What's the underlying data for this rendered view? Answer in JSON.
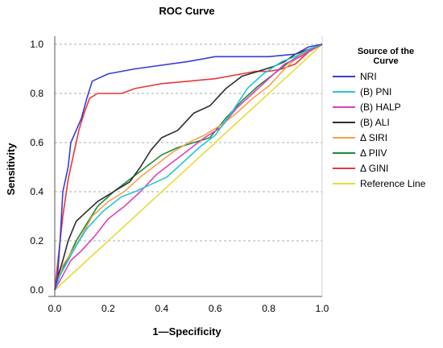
{
  "chart_data": {
    "type": "line",
    "title": "ROC Curve",
    "xlabel": "1—Specificity",
    "ylabel": "Sensitivity",
    "xlim": [
      0.0,
      1.0
    ],
    "ylim": [
      0.0,
      1.0
    ],
    "xticks": [
      "0.0",
      "0.2",
      "0.4",
      "0.6",
      "0.8",
      "1.0"
    ],
    "yticks": [
      "0.0",
      "0.2",
      "0.4",
      "0.6",
      "0.8",
      "1.0"
    ],
    "grid": "horizontal dotted",
    "legend_title_lines": [
      "Source of the",
      "Curve"
    ],
    "legend_position": "right",
    "series": [
      {
        "name": "NRI",
        "color": "#3b3bd6",
        "x": [
          0.0,
          0.01,
          0.02,
          0.03,
          0.05,
          0.06,
          0.08,
          0.1,
          0.12,
          0.14,
          0.16,
          0.2,
          0.3,
          0.5,
          0.6,
          0.7,
          0.8,
          0.9,
          0.95,
          1.0
        ],
        "y": [
          0.0,
          0.05,
          0.2,
          0.4,
          0.5,
          0.6,
          0.65,
          0.7,
          0.78,
          0.85,
          0.86,
          0.88,
          0.9,
          0.93,
          0.95,
          0.95,
          0.95,
          0.96,
          0.99,
          1.0
        ]
      },
      {
        "name": "(B) PNI",
        "color": "#22c6d6",
        "x": [
          0.0,
          0.02,
          0.05,
          0.08,
          0.12,
          0.18,
          0.25,
          0.3,
          0.36,
          0.42,
          0.48,
          0.54,
          0.6,
          0.66,
          0.72,
          0.78,
          0.85,
          0.9,
          0.95,
          1.0
        ],
        "y": [
          0.0,
          0.06,
          0.12,
          0.18,
          0.25,
          0.32,
          0.38,
          0.4,
          0.43,
          0.46,
          0.52,
          0.58,
          0.63,
          0.72,
          0.82,
          0.88,
          0.93,
          0.95,
          0.98,
          1.0
        ]
      },
      {
        "name": "(B) HALP",
        "color": "#e040b8",
        "x": [
          0.0,
          0.03,
          0.06,
          0.1,
          0.15,
          0.2,
          0.26,
          0.32,
          0.38,
          0.44,
          0.5,
          0.56,
          0.62,
          0.68,
          0.74,
          0.8,
          0.86,
          0.92,
          0.96,
          1.0
        ],
        "y": [
          0.0,
          0.06,
          0.12,
          0.16,
          0.22,
          0.29,
          0.34,
          0.4,
          0.47,
          0.52,
          0.57,
          0.62,
          0.66,
          0.74,
          0.8,
          0.86,
          0.92,
          0.95,
          0.98,
          1.0
        ]
      },
      {
        "name": "(B) ALI",
        "color": "#2d2d2d",
        "x": [
          0.0,
          0.01,
          0.03,
          0.05,
          0.08,
          0.12,
          0.16,
          0.22,
          0.28,
          0.32,
          0.36,
          0.4,
          0.46,
          0.52,
          0.58,
          0.64,
          0.7,
          0.76,
          0.82,
          0.86,
          0.9,
          0.95,
          1.0
        ],
        "y": [
          0.0,
          0.05,
          0.12,
          0.2,
          0.28,
          0.32,
          0.36,
          0.4,
          0.44,
          0.5,
          0.57,
          0.62,
          0.65,
          0.72,
          0.75,
          0.82,
          0.87,
          0.89,
          0.91,
          0.93,
          0.96,
          0.98,
          1.0
        ]
      },
      {
        "name": "Δ SIRI",
        "color": "#f5a14a",
        "x": [
          0.0,
          0.03,
          0.06,
          0.1,
          0.14,
          0.2,
          0.26,
          0.32,
          0.38,
          0.44,
          0.5,
          0.56,
          0.62,
          0.68,
          0.74,
          0.8,
          0.86,
          0.9,
          0.95,
          1.0
        ],
        "y": [
          0.0,
          0.1,
          0.15,
          0.22,
          0.3,
          0.36,
          0.4,
          0.46,
          0.51,
          0.56,
          0.6,
          0.63,
          0.67,
          0.72,
          0.78,
          0.83,
          0.9,
          0.94,
          0.98,
          1.0
        ]
      },
      {
        "name": "Δ PIIV",
        "color": "#1f8a3a",
        "x": [
          0.0,
          0.02,
          0.05,
          0.08,
          0.12,
          0.16,
          0.22,
          0.28,
          0.34,
          0.4,
          0.46,
          0.52,
          0.58,
          0.64,
          0.7,
          0.76,
          0.82,
          0.88,
          0.94,
          1.0
        ],
        "y": [
          0.0,
          0.07,
          0.13,
          0.2,
          0.27,
          0.34,
          0.4,
          0.45,
          0.5,
          0.55,
          0.58,
          0.6,
          0.62,
          0.7,
          0.77,
          0.83,
          0.88,
          0.93,
          0.97,
          1.0
        ]
      },
      {
        "name": "Δ GINI",
        "color": "#e8383b",
        "x": [
          0.0,
          0.01,
          0.03,
          0.05,
          0.07,
          0.09,
          0.11,
          0.13,
          0.16,
          0.2,
          0.25,
          0.3,
          0.4,
          0.5,
          0.6,
          0.7,
          0.75,
          0.8,
          0.85,
          0.9,
          0.95,
          1.0
        ],
        "y": [
          0.0,
          0.1,
          0.3,
          0.45,
          0.55,
          0.65,
          0.72,
          0.78,
          0.8,
          0.8,
          0.8,
          0.82,
          0.84,
          0.85,
          0.86,
          0.88,
          0.89,
          0.89,
          0.9,
          0.92,
          0.97,
          1.0
        ]
      },
      {
        "name": "Reference Line",
        "color": "#e6dc38",
        "x": [
          0.0,
          1.0
        ],
        "y": [
          0.0,
          1.0
        ]
      }
    ]
  }
}
